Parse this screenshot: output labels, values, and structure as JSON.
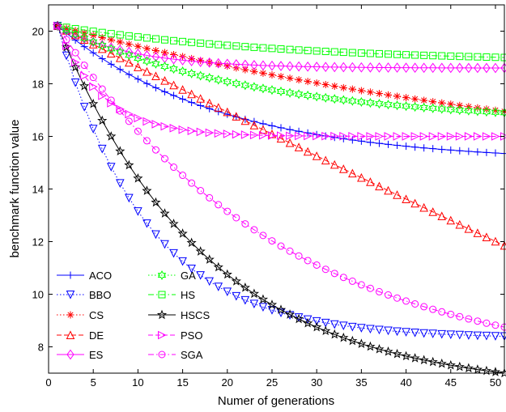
{
  "chart_data": {
    "type": "line",
    "title": "",
    "xlabel": "Numer of generations",
    "ylabel": "benchmark function value",
    "xlim": [
      0,
      51
    ],
    "ylim": [
      7,
      21
    ],
    "xticks": [
      0,
      5,
      10,
      15,
      20,
      25,
      30,
      35,
      40,
      45,
      50
    ],
    "yticks": [
      8,
      10,
      12,
      14,
      16,
      18,
      20
    ],
    "grid": false,
    "legend_position": "bottom-left",
    "series": [
      {
        "name": "ACO",
        "color": "#0000ff",
        "dash": "solid",
        "marker": "plus",
        "start": 20.2,
        "end": 15.35,
        "k": 0.055
      },
      {
        "name": "BBO",
        "color": "#0000ff",
        "dash": "dotted",
        "marker": "triangle-down",
        "start": 20.2,
        "end": 8.4,
        "k": 0.1
      },
      {
        "name": "CS",
        "color": "#ff0000",
        "dash": "dotted",
        "marker": "star",
        "start": 20.2,
        "end": 16.95,
        "k": 0.015
      },
      {
        "name": "DE",
        "color": "#ff0000",
        "dash": "dashed",
        "marker": "triangle-up",
        "start": 20.2,
        "end": 11.85,
        "k": 0.002
      },
      {
        "name": "ES",
        "color": "#ff00ff",
        "dash": "solid",
        "marker": "diamond",
        "start": 20.2,
        "end": 18.6,
        "k": 0.12
      },
      {
        "name": "GA",
        "color": "#00ff00",
        "dash": "dotted",
        "marker": "hexagram",
        "start": 20.2,
        "end": 16.9,
        "k": 0.045
      },
      {
        "name": "HS",
        "color": "#00ff00",
        "dash": "dashdot",
        "marker": "square",
        "start": 20.2,
        "end": 19.0,
        "k": 0.04
      },
      {
        "name": "HSCS",
        "color": "#000000",
        "dash": "solid",
        "marker": "pentagram",
        "start": 20.2,
        "end": 7.0,
        "k": 0.06
      },
      {
        "name": "PSO",
        "color": "#ff00ff",
        "dash": "dashed",
        "marker": "triangle-right",
        "start": 20.2,
        "end": 16.0,
        "k": 0.2
      },
      {
        "name": "SGA",
        "color": "#ff00ff",
        "dash": "dashdot",
        "marker": "circle",
        "start": 20.2,
        "end": 8.75,
        "k": 0.04
      }
    ]
  }
}
